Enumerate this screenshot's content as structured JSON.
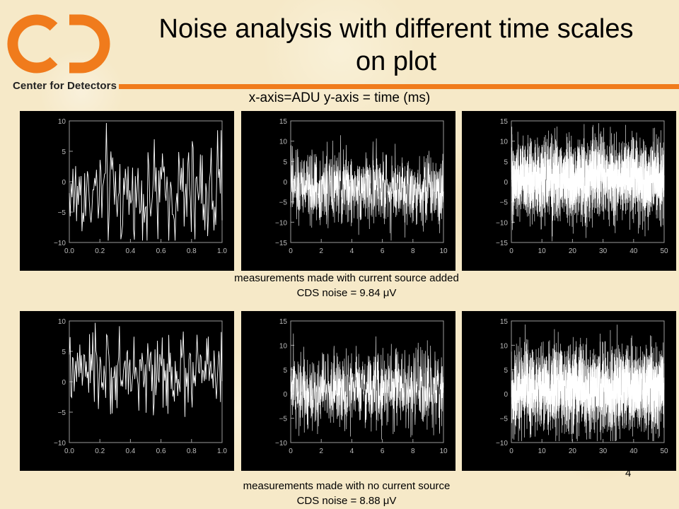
{
  "logo": {
    "text": "Center for Detectors",
    "brand_color": "#f07b1c"
  },
  "slide": {
    "title": "Noise analysis with different time scales on plot",
    "subtitle": "x-axis=ADU y-axis = time (ms)",
    "caption_top_1": "measurements made with current source added",
    "caption_top_2": "CDS noise = 9.84 μV",
    "caption_bottom_1": "measurements made with no current source",
    "caption_bottom_2": "CDS noise = 8.88 μV",
    "page_number": "4"
  },
  "chart_data": [
    {
      "type": "line",
      "row": "with current source",
      "xlim": [
        0,
        1.0
      ],
      "ylim": [
        -10,
        10
      ],
      "xticks": [
        "0.0",
        "0.2",
        "0.4",
        "0.6",
        "0.8",
        "1.0"
      ],
      "yticks": [
        "10",
        "5",
        "0",
        "−5",
        "−10"
      ],
      "noise_amplitude": 4.5,
      "offset": -2,
      "points": 170,
      "grid": false
    },
    {
      "type": "line",
      "row": "with current source",
      "xlim": [
        0,
        10
      ],
      "ylim": [
        -15,
        15
      ],
      "xticks": [
        "0",
        "2",
        "4",
        "6",
        "8",
        "10"
      ],
      "yticks": [
        "15",
        "10",
        "5",
        "0",
        "−5",
        "−10",
        "−15"
      ],
      "noise_amplitude": 4.5,
      "offset": -1.5,
      "points": 900,
      "grid": false
    },
    {
      "type": "line",
      "row": "with current source",
      "xlim": [
        0,
        50
      ],
      "ylim": [
        -15,
        15
      ],
      "xticks": [
        "0",
        "10",
        "20",
        "30",
        "40",
        "50"
      ],
      "yticks": [
        "15",
        "10",
        "5",
        "0",
        "−5",
        "−10",
        "−15"
      ],
      "noise_amplitude": 5,
      "offset": 0.5,
      "points": 2600,
      "grid": false
    },
    {
      "type": "line",
      "row": "no current source",
      "xlim": [
        0,
        1.0
      ],
      "ylim": [
        -10,
        10
      ],
      "xticks": [
        "0.0",
        "0.2",
        "0.4",
        "0.6",
        "0.8",
        "1.0"
      ],
      "yticks": [
        "10",
        "5",
        "0",
        "−5",
        "−10"
      ],
      "noise_amplitude": 3.2,
      "offset": 1.5,
      "points": 190,
      "grid": false
    },
    {
      "type": "line",
      "row": "no current source",
      "xlim": [
        0,
        10
      ],
      "ylim": [
        -10,
        15
      ],
      "xticks": [
        "0",
        "2",
        "4",
        "6",
        "8",
        "10"
      ],
      "yticks": [
        "15",
        "10",
        "5",
        "0",
        "−5",
        "−10"
      ],
      "noise_amplitude": 4,
      "offset": 1,
      "points": 900,
      "grid": false
    },
    {
      "type": "line",
      "row": "no current source",
      "xlim": [
        0,
        50
      ],
      "ylim": [
        -10,
        15
      ],
      "xticks": [
        "0",
        "10",
        "20",
        "30",
        "40",
        "50"
      ],
      "yticks": [
        "15",
        "10",
        "5",
        "0",
        "−5",
        "−10"
      ],
      "noise_amplitude": 4.5,
      "offset": 1,
      "points": 2600,
      "grid": false
    }
  ]
}
